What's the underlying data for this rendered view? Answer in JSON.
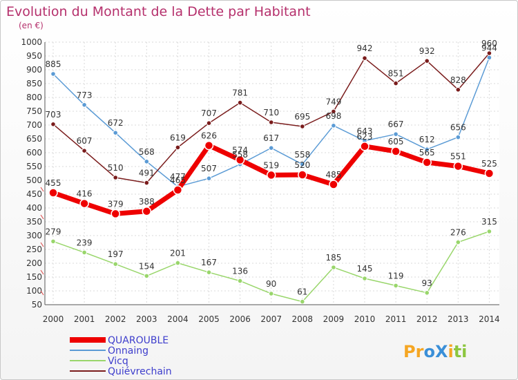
{
  "chart_data": {
    "type": "line",
    "title": "Evolution du Montant de la Dette par Habitant",
    "subtitle": "(en €)",
    "x": [
      "2000",
      "2001",
      "2002",
      "2003",
      "2004",
      "2005",
      "2006",
      "2007",
      "2008",
      "2009",
      "2010",
      "2011",
      "2012",
      "2013",
      "2014"
    ],
    "ylim": [
      50,
      1000
    ],
    "yticks": [
      50,
      100,
      150,
      200,
      250,
      300,
      350,
      400,
      450,
      500,
      550,
      600,
      650,
      700,
      750,
      800,
      850,
      900,
      950,
      1000
    ],
    "grid": true,
    "legend_position": "bottom-left",
    "series": [
      {
        "name": "QUAROUBLE",
        "color": "#ee0000",
        "values": [
          455,
          416,
          379,
          388,
          465,
          626,
          574,
          519,
          520,
          485,
          623,
          605,
          565,
          551,
          525
        ]
      },
      {
        "name": "Onnaing",
        "color": "#5b9bd5",
        "values": [
          885,
          773,
          672,
          568,
          477,
          507,
          558,
          617,
          558,
          698,
          643,
          667,
          612,
          656,
          944
        ]
      },
      {
        "name": "Vicq",
        "color": "#99d66b",
        "values": [
          279,
          239,
          197,
          154,
          201,
          167,
          136,
          90,
          61,
          185,
          145,
          119,
          93,
          276,
          315
        ]
      },
      {
        "name": "Quiévrechain",
        "color": "#7a1c1c",
        "values": [
          703,
          607,
          510,
          491,
          619,
          707,
          781,
          710,
          695,
          749,
          942,
          851,
          932,
          828,
          960
        ]
      }
    ]
  },
  "brand": {
    "text": "ProXiti",
    "letters": [
      "P",
      "r",
      "o",
      "X",
      "i",
      "t",
      "i"
    ],
    "colors": [
      "#f5a623",
      "#f5a623",
      "#3a8fd8",
      "#3a8fd8",
      "#f5a623",
      "#8cc63f",
      "#8cc63f"
    ]
  }
}
